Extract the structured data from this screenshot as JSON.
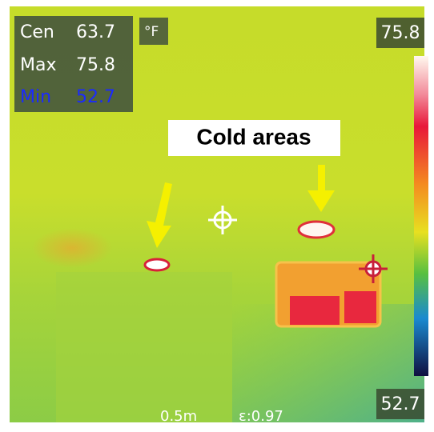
{
  "readouts": {
    "center": {
      "label": "Cen",
      "value": "63.7"
    },
    "unit": "°F",
    "max": {
      "label": "Max",
      "value": "75.8"
    },
    "min": {
      "label": "Min",
      "value": "52.7"
    }
  },
  "scale": {
    "top": "75.8",
    "bottom": "52.7"
  },
  "annotation": "Cold areas",
  "footer": {
    "distance": "0.5m",
    "emissivity": "ε:0.97"
  }
}
